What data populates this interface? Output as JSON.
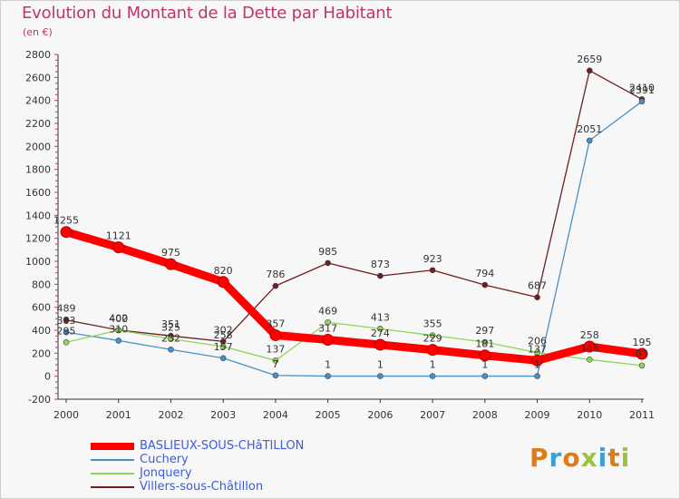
{
  "header": {
    "title": "Evolution du Montant de la Dette par Habitant",
    "unit": "(en €)"
  },
  "logo": {
    "text": "Proxiti",
    "colors": [
      "#e07b1a",
      "#3aa0d8",
      "#e07b1a",
      "#9ac43a",
      "#3aa0d8",
      "#e07b1a",
      "#9ac43a"
    ]
  },
  "chart_data": {
    "type": "line",
    "title": "Evolution du Montant de la Dette par Habitant",
    "ylabel": "(en €)",
    "xlabel": "",
    "x": [
      "2000",
      "2001",
      "2002",
      "2003",
      "2004",
      "2005",
      "2006",
      "2007",
      "2008",
      "2009",
      "2010",
      "2011"
    ],
    "ylim": [
      -200,
      2800
    ],
    "yticks": [
      -200,
      0,
      200,
      400,
      600,
      800,
      1000,
      1200,
      1400,
      1600,
      1800,
      2000,
      2200,
      2400,
      2600,
      2800
    ],
    "grid": false,
    "legend_position": "bottom-left",
    "series": [
      {
        "name": "BASLIEUX-SOUS-CHâTILLON",
        "color": "#ff0000",
        "values": [
          1255,
          1121,
          975,
          820,
          357,
          317,
          274,
          229,
          181,
          137,
          258,
          195
        ],
        "labels": [
          "1255",
          "1121",
          "975",
          "820",
          "357",
          "317",
          "274",
          "229",
          "181",
          "137",
          "258",
          "195"
        ]
      },
      {
        "name": "Cuchery",
        "color": "#4a90c8",
        "values": [
          383,
          310,
          232,
          157,
          7,
          1,
          1,
          1,
          1,
          1,
          2051,
          2391
        ],
        "labels": [
          "383",
          "310",
          "232",
          "157",
          "7",
          "1",
          "1",
          "1",
          "1",
          "1",
          "2051",
          "2391"
        ]
      },
      {
        "name": "Jonquery",
        "color": "#8fd45a",
        "values": [
          295,
          400,
          325,
          258,
          137,
          469,
          413,
          355,
          297,
          206,
          145,
          93
        ],
        "labels": [
          "295",
          "400",
          "325",
          "258",
          "137",
          "469",
          "413",
          "355",
          "297",
          "206",
          "145",
          "93"
        ]
      },
      {
        "name": "Villers-sous-Châtillon",
        "color": "#6e1e1e",
        "values": [
          489,
          402,
          351,
          302,
          786,
          985,
          873,
          923,
          794,
          687,
          2659,
          2410
        ],
        "labels": [
          "489",
          "402",
          "351",
          "302",
          "786",
          "985",
          "873",
          "923",
          "794",
          "687",
          "2659",
          "2410"
        ]
      }
    ]
  }
}
